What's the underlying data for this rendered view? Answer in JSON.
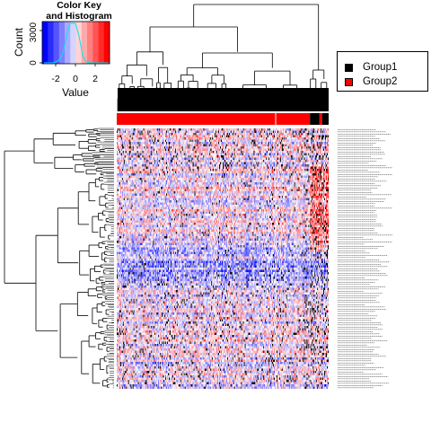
{
  "chart_data": {
    "type": "heatmap",
    "color_key": {
      "title_line1": "Color Key",
      "title_line2": "and Histogram",
      "xlabel": "Value",
      "ylabel": "Count",
      "x_ticks": [
        "-2",
        "0",
        "2"
      ],
      "y_ticks": [
        "0",
        "3000"
      ],
      "value_range": [
        -3.5,
        3.5
      ],
      "colors": [
        "#0000ff",
        "#2b2bff",
        "#5555ff",
        "#8080ff",
        "#aaaaff",
        "#d4d4ff",
        "#ffd4d4",
        "#ffaaaa",
        "#ff8080",
        "#ff5555",
        "#ff2b2b",
        "#ff0000"
      ]
    },
    "column_groups": [
      {
        "name": "Group2",
        "color": "#ff0000",
        "fraction": 0.912
      },
      {
        "name": "Group1",
        "color": "#000000",
        "fraction": 0.045
      },
      {
        "name": "Group2",
        "color": "#ff0000",
        "fraction": 0.012
      },
      {
        "name": "Group1",
        "color": "#000000",
        "fraction": 0.031
      }
    ],
    "legend": {
      "placement": "top-right",
      "items": [
        {
          "name": "Group1",
          "color": "#000000"
        },
        {
          "name": "Group2",
          "color": "#ff0000"
        }
      ]
    },
    "num_rows": 116,
    "num_cols": 240,
    "low_color": "#0000ff",
    "mid_color": "#ffffff",
    "high_color": "#ff0000",
    "na_color": "#000000"
  }
}
